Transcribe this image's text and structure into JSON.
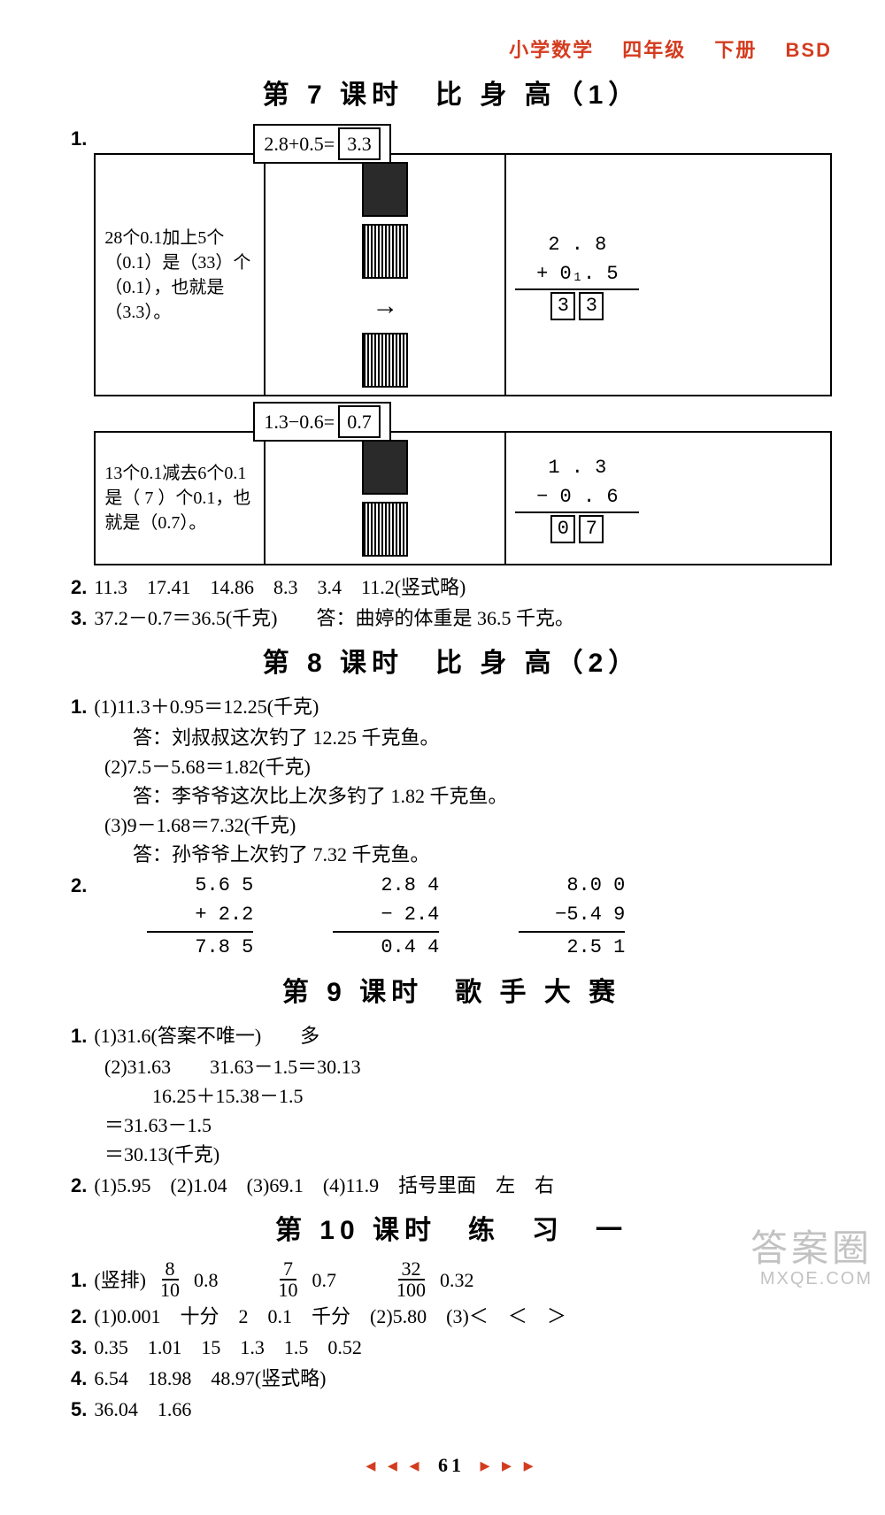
{
  "header": {
    "subject": "小学数学",
    "grade": "四年级",
    "volume": "下册",
    "edition": "BSD",
    "color": "#d43c1f"
  },
  "sections": {
    "s7": {
      "title": "第 7 课时　比 身 高（1）",
      "q1": {
        "box1": {
          "eq_label": "2.8+0.5=",
          "eq_ans": "3.3",
          "text": "28个0.1加上5个（0.1）是（33）个（0.1），也就是（3.3）。",
          "calc_top": "2 . 8",
          "calc_mid": "+ 0₁. 5",
          "d1": "3",
          "d2": "3"
        },
        "box2": {
          "eq_label": "1.3−0.6=",
          "eq_ans": "0.7",
          "text": "13个0.1减去6个0.1是（ 7 ）个0.1，也就是（0.7）。",
          "calc_top": "1 . 3",
          "calc_mid": "− 0 . 6",
          "d1": "0",
          "d2": "7"
        }
      },
      "q2": "11.3　17.41　14.86　8.3　3.4　11.2(竖式略)",
      "q3": "37.2－0.7＝36.5(千克)　　答：曲婷的体重是 36.5 千克。"
    },
    "s8": {
      "title": "第 8 课时　比 身 高（2）",
      "q1": {
        "l1": "(1)11.3＋0.95＝12.25(千克)",
        "l1a": "答：刘叔叔这次钓了 12.25 千克鱼。",
        "l2": "(2)7.5－5.68＝1.82(千克)",
        "l2a": "答：李爷爷这次比上次多钓了 1.82 千克鱼。",
        "l3": "(3)9－1.68＝7.32(千克)",
        "l3a": "答：孙爷爷上次钓了 7.32 千克鱼。"
      },
      "q2": {
        "c1": {
          "a": "5.6 5",
          "b": "+ 2.2  ",
          "r": "7.8 5"
        },
        "c2": {
          "a": "2.8 4",
          "b": "− 2.4  ",
          "r": "0.4 4"
        },
        "c3": {
          "a": "8.0 0",
          "b": "−5.4 9",
          "r": "2.5 1"
        }
      }
    },
    "s9": {
      "title": "第 9 课时　歌 手 大 赛",
      "q1": {
        "l1": "(1)31.6(答案不唯一)　　多",
        "l2": "(2)31.63　　31.63－1.5＝30.13",
        "l3": "　16.25＋15.38－1.5",
        "l4": "＝31.63－1.5",
        "l5": "＝30.13(千克)"
      },
      "q2": "(1)5.95　(2)1.04　(3)69.1　(4)11.9　括号里面　左　右"
    },
    "s10": {
      "title": "第 10 课时　练　习　一",
      "q1": {
        "pre": "(竖排)",
        "f1n": "8",
        "f1d": "10",
        "v1": "0.8",
        "f2n": "7",
        "f2d": "10",
        "v2": "0.7",
        "f3n": "32",
        "f3d": "100",
        "v3": "0.32"
      },
      "q2": "(1)0.001　十分　2　0.1　千分　(2)5.80　(3)＜　＜　＞",
      "q3": "0.35　1.01　15　1.3　1.5　0.52",
      "q4": "6.54　18.98　48.97(竖式略)",
      "q5": "36.04　1.66"
    }
  },
  "footer": {
    "left_marks": "◂ ◂ ◂",
    "page": "61",
    "right_marks": "▸ ▸ ▸"
  },
  "watermark": {
    "line1": "答案圈",
    "line2": "MXQE.COM"
  }
}
